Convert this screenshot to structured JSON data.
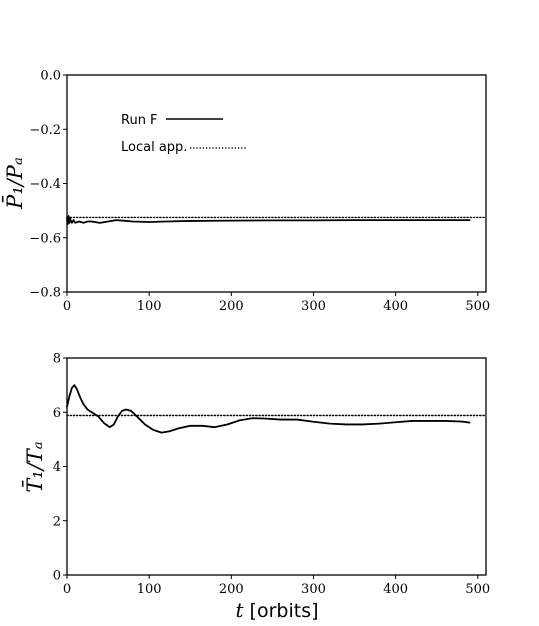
{
  "chart_data": [
    {
      "type": "line",
      "ylabel": "P̄1/Pa",
      "xlabel": "",
      "xlim": [
        0,
        510
      ],
      "ylim": [
        -0.8,
        0.0
      ],
      "xticks": [
        0,
        100,
        200,
        300,
        400,
        500
      ],
      "xtick_labels": [
        "0",
        "100",
        "200",
        "300",
        "400",
        "500"
      ],
      "yticks": [
        0.0,
        -0.2,
        -0.4,
        -0.6,
        -0.8
      ],
      "ytick_labels": [
        "0.0",
        "−0.2",
        "−0.4",
        "−0.6",
        "−0.8"
      ],
      "grid": false,
      "legend_position": "upper-left",
      "series": [
        {
          "name": "Run F",
          "style": "solid",
          "color": "#000000",
          "x": [
            0,
            1,
            2,
            3,
            4,
            5,
            6,
            8,
            10,
            15,
            20,
            25,
            30,
            40,
            50,
            60,
            80,
            100,
            120,
            150,
            200,
            250,
            300,
            350,
            400,
            450,
            490
          ],
          "y": [
            -0.53,
            -0.55,
            -0.52,
            -0.545,
            -0.53,
            -0.54,
            -0.545,
            -0.535,
            -0.545,
            -0.54,
            -0.545,
            -0.54,
            -0.54,
            -0.545,
            -0.54,
            -0.535,
            -0.54,
            -0.542,
            -0.54,
            -0.538,
            -0.537,
            -0.536,
            -0.536,
            -0.535,
            -0.535,
            -0.535,
            -0.535
          ]
        },
        {
          "name": "Local app.",
          "style": "dotted",
          "color": "#000000",
          "x": [
            0,
            510
          ],
          "y": [
            -0.525,
            -0.525
          ]
        }
      ]
    },
    {
      "type": "line",
      "ylabel": "T̄1/Ta",
      "xlabel": "t [orbits]",
      "xlim": [
        0,
        510
      ],
      "ylim": [
        0,
        8
      ],
      "xticks": [
        0,
        100,
        200,
        300,
        400,
        500
      ],
      "xtick_labels": [
        "0",
        "100",
        "200",
        "300",
        "400",
        "500"
      ],
      "yticks": [
        0,
        2,
        4,
        6,
        8
      ],
      "ytick_labels": [
        "0",
        "2",
        "4",
        "6",
        "8"
      ],
      "grid": false,
      "series": [
        {
          "style": "solid",
          "color": "#000000",
          "x": [
            0,
            3,
            6,
            9,
            12,
            16,
            20,
            25,
            30,
            38,
            45,
            52,
            57,
            62,
            67,
            72,
            78,
            85,
            95,
            105,
            115,
            125,
            135,
            150,
            165,
            180,
            195,
            210,
            225,
            240,
            260,
            280,
            300,
            320,
            340,
            360,
            380,
            400,
            420,
            440,
            460,
            480,
            490
          ],
          "y": [
            6.2,
            6.6,
            6.9,
            7.0,
            6.85,
            6.55,
            6.3,
            6.1,
            6.0,
            5.85,
            5.6,
            5.45,
            5.55,
            5.85,
            6.05,
            6.1,
            6.05,
            5.85,
            5.55,
            5.35,
            5.25,
            5.3,
            5.4,
            5.5,
            5.5,
            5.45,
            5.55,
            5.7,
            5.78,
            5.77,
            5.73,
            5.73,
            5.65,
            5.58,
            5.55,
            5.55,
            5.58,
            5.63,
            5.68,
            5.68,
            5.68,
            5.66,
            5.62
          ]
        },
        {
          "style": "dotted",
          "color": "#000000",
          "x": [
            0,
            510
          ],
          "y": [
            5.88,
            5.88
          ]
        }
      ]
    }
  ]
}
